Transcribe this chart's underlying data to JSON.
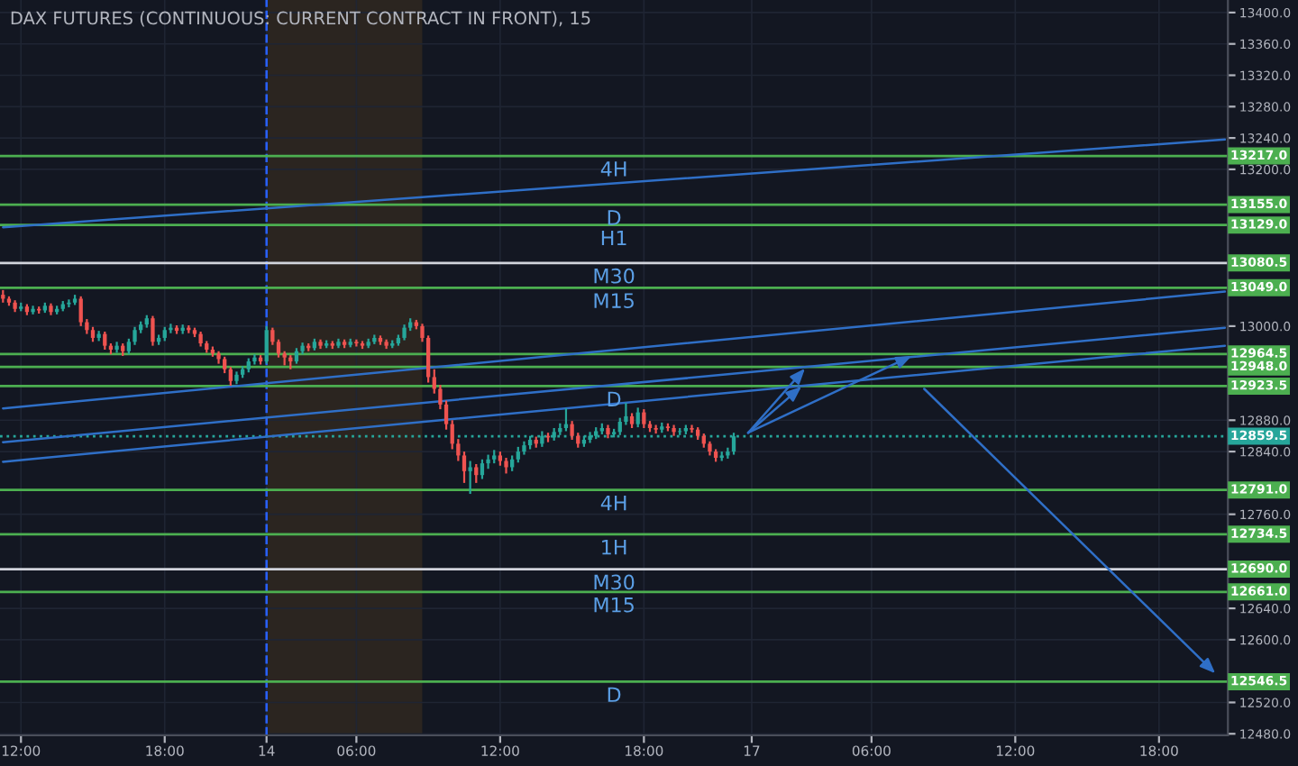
{
  "chart_data": {
    "type": "candlestick",
    "title": "DAX FUTURES (CONTINUOUS: CURRENT CONTRACT IN FRONT), 15",
    "categories": [
      null,
      null,
      null,
      "12:00",
      null,
      null,
      null,
      null,
      null,
      null,
      null,
      null,
      null,
      null,
      null,
      null,
      null,
      null,
      null,
      null,
      null,
      null,
      null,
      null,
      null,
      null,
      null,
      "18:00",
      null,
      null,
      null,
      null,
      null,
      null,
      null,
      null,
      null,
      null,
      null,
      null,
      null,
      null,
      null,
      null,
      "14",
      null,
      null,
      null,
      null,
      null,
      null,
      null,
      null,
      null,
      null,
      null,
      null,
      null,
      null,
      "06:00",
      null,
      null,
      null,
      null,
      null,
      null,
      null,
      null,
      null,
      null,
      null,
      null,
      null,
      null,
      null,
      null,
      null,
      null,
      null,
      null,
      null,
      null,
      null,
      "12:00",
      null,
      null,
      null,
      null,
      null,
      null,
      null,
      null,
      null,
      null,
      null,
      null,
      null,
      null,
      null,
      null,
      null,
      null,
      null,
      null,
      null,
      null,
      null,
      "18:00",
      null,
      null,
      null,
      null,
      null,
      null,
      null,
      null,
      null,
      null,
      null,
      null,
      null,
      null,
      null,
      null,
      null,
      "17",
      null,
      null,
      null,
      null,
      null,
      null,
      null,
      null,
      null,
      null,
      null,
      null,
      null,
      null,
      null,
      null,
      null,
      null,
      null,
      "06:00",
      null,
      null,
      null,
      null,
      null,
      null,
      null,
      null,
      null,
      null,
      null,
      null,
      null,
      null,
      null,
      null,
      null,
      null,
      null,
      null,
      null,
      null,
      null,
      "12:00",
      null,
      null,
      null,
      null,
      null,
      null,
      null,
      null,
      null,
      null,
      null,
      null,
      null,
      null,
      null,
      null,
      null,
      null,
      null,
      null,
      null,
      null,
      null,
      "18:00",
      null,
      null,
      null,
      null,
      null,
      null,
      null,
      null,
      null,
      null,
      null
    ],
    "ohlc": [
      [
        13040,
        13046,
        13030,
        13035
      ],
      [
        13035,
        13038,
        13026,
        13030
      ],
      [
        13030,
        13033,
        13018,
        13022
      ],
      [
        13022,
        13030,
        13019,
        13025
      ],
      [
        13025,
        13028,
        13014,
        13018
      ],
      [
        13018,
        13026,
        13015,
        13022
      ],
      [
        13022,
        13025,
        13016,
        13020
      ],
      [
        13020,
        13030,
        13017,
        13026
      ],
      [
        13026,
        13029,
        13014,
        13018
      ],
      [
        13018,
        13026,
        13015,
        13022
      ],
      [
        13022,
        13032,
        13019,
        13028
      ],
      [
        13028,
        13034,
        13024,
        13030
      ],
      [
        13030,
        13040,
        13027,
        13035
      ],
      [
        13035,
        13038,
        13000,
        13005
      ],
      [
        13005,
        13009,
        12990,
        12995
      ],
      [
        12995,
        12999,
        12980,
        12985
      ],
      [
        12985,
        12994,
        12981,
        12990
      ],
      [
        12990,
        12993,
        12970,
        12975
      ],
      [
        12975,
        12978,
        12964,
        12970
      ],
      [
        12970,
        12980,
        12966,
        12975
      ],
      [
        12975,
        12978,
        12962,
        12968
      ],
      [
        12968,
        12984,
        12964,
        12980
      ],
      [
        12980,
        12999,
        12976,
        12995
      ],
      [
        12995,
        13006,
        12991,
        13002
      ],
      [
        13002,
        13014,
        12998,
        13010
      ],
      [
        13010,
        13013,
        12975,
        12980
      ],
      [
        12980,
        12989,
        12976,
        12985
      ],
      [
        12985,
        12999,
        12981,
        12995
      ],
      [
        12995,
        13003,
        12991,
        12998
      ],
      [
        12998,
        13001,
        12990,
        12994
      ],
      [
        12994,
        13002,
        12990,
        12998
      ],
      [
        12998,
        13001,
        12991,
        12995
      ],
      [
        12995,
        12998,
        12986,
        12990
      ],
      [
        12990,
        12993,
        12974,
        12978
      ],
      [
        12978,
        12981,
        12966,
        12970
      ],
      [
        12970,
        12974,
        12961,
        12965
      ],
      [
        12965,
        12968,
        12952,
        12958
      ],
      [
        12958,
        12961,
        12940,
        12945
      ],
      [
        12945,
        12948,
        12924,
        12930
      ],
      [
        12930,
        12942,
        12926,
        12938
      ],
      [
        12938,
        12949,
        12934,
        12945
      ],
      [
        12945,
        12959,
        12941,
        12955
      ],
      [
        12955,
        12964,
        12951,
        12960
      ],
      [
        12960,
        12963,
        12951,
        12955
      ],
      [
        12955,
        13000,
        12952,
        12995
      ],
      [
        12995,
        12998,
        12976,
        12980
      ],
      [
        12980,
        12983,
        12960,
        12965
      ],
      [
        12965,
        12968,
        12950,
        12960
      ],
      [
        12960,
        12963,
        12945,
        12955
      ],
      [
        12955,
        12972,
        12952,
        12968
      ],
      [
        12968,
        12979,
        12964,
        12975
      ],
      [
        12975,
        12978,
        12968,
        12972
      ],
      [
        12972,
        12984,
        12969,
        12980
      ],
      [
        12980,
        12983,
        12971,
        12975
      ],
      [
        12975,
        12982,
        12972,
        12978
      ],
      [
        12978,
        12981,
        12971,
        12975
      ],
      [
        12975,
        12984,
        12972,
        12980
      ],
      [
        12980,
        12983,
        12972,
        12976
      ],
      [
        12976,
        12984,
        12973,
        12980
      ],
      [
        12980,
        12983,
        12974,
        12978
      ],
      [
        12978,
        12981,
        12971,
        12975
      ],
      [
        12975,
        12984,
        12972,
        12980
      ],
      [
        12980,
        12989,
        12977,
        12985
      ],
      [
        12985,
        12988,
        12976,
        12980
      ],
      [
        12980,
        12983,
        12971,
        12975
      ],
      [
        12975,
        12982,
        12972,
        12978
      ],
      [
        12978,
        12989,
        12975,
        12985
      ],
      [
        12985,
        13002,
        12982,
        12998
      ],
      [
        12998,
        13010,
        12994,
        13005
      ],
      [
        13005,
        13008,
        12996,
        13000
      ],
      [
        13000,
        13003,
        12980,
        12985
      ],
      [
        12985,
        12988,
        12928,
        12935
      ],
      [
        12935,
        12945,
        12914,
        12920
      ],
      [
        12920,
        12925,
        12894,
        12900
      ],
      [
        12900,
        12905,
        12868,
        12875
      ],
      [
        12875,
        12880,
        12843,
        12850
      ],
      [
        12850,
        12856,
        12828,
        12835
      ],
      [
        12835,
        12840,
        12800,
        12815
      ],
      [
        12815,
        12828,
        12786,
        12820
      ],
      [
        12820,
        12824,
        12800,
        12810
      ],
      [
        12810,
        12830,
        12805,
        12825
      ],
      [
        12825,
        12836,
        12818,
        12830
      ],
      [
        12830,
        12842,
        12825,
        12835
      ],
      [
        12835,
        12840,
        12822,
        12828
      ],
      [
        12828,
        12832,
        12812,
        12820
      ],
      [
        12820,
        12835,
        12815,
        12830
      ],
      [
        12830,
        12846,
        12826,
        12840
      ],
      [
        12840,
        12853,
        12836,
        12848
      ],
      [
        12848,
        12860,
        12843,
        12855
      ],
      [
        12855,
        12859,
        12845,
        12850
      ],
      [
        12850,
        12866,
        12846,
        12860
      ],
      [
        12860,
        12864,
        12852,
        12858
      ],
      [
        12858,
        12870,
        12854,
        12865
      ],
      [
        12865,
        12876,
        12861,
        12870
      ],
      [
        12870,
        12895,
        12866,
        12875
      ],
      [
        12875,
        12879,
        12855,
        12860
      ],
      [
        12860,
        12864,
        12845,
        12850
      ],
      [
        12850,
        12860,
        12846,
        12855
      ],
      [
        12855,
        12865,
        12851,
        12860
      ],
      [
        12860,
        12871,
        12856,
        12866
      ],
      [
        12866,
        12876,
        12862,
        12870
      ],
      [
        12870,
        12874,
        12857,
        12862
      ],
      [
        12862,
        12869,
        12858,
        12865
      ],
      [
        12865,
        12883,
        12861,
        12878
      ],
      [
        12878,
        12902,
        12874,
        12885
      ],
      [
        12885,
        12889,
        12870,
        12875
      ],
      [
        12875,
        12896,
        12871,
        12890
      ],
      [
        12890,
        12894,
        12870,
        12875
      ],
      [
        12875,
        12879,
        12865,
        12870
      ],
      [
        12870,
        12874,
        12863,
        12868
      ],
      [
        12868,
        12877,
        12864,
        12872
      ],
      [
        12872,
        12876,
        12866,
        12870
      ],
      [
        12870,
        12874,
        12860,
        12865
      ],
      [
        12865,
        12870,
        12861,
        12866
      ],
      [
        12866,
        12874,
        12862,
        12870
      ],
      [
        12870,
        12874,
        12864,
        12868
      ],
      [
        12868,
        12871,
        12855,
        12860
      ],
      [
        12860,
        12863,
        12845,
        12850
      ],
      [
        12850,
        12853,
        12835,
        12840
      ],
      [
        12840,
        12843,
        12827,
        12832
      ],
      [
        12832,
        12840,
        12828,
        12835
      ],
      [
        12835,
        12845,
        12831,
        12840
      ],
      [
        12840,
        12864,
        12836,
        12859.5
      ],
      null,
      null,
      null,
      null,
      null,
      null,
      null,
      null,
      null,
      null,
      null,
      null,
      null,
      null,
      null,
      null,
      null,
      null,
      null,
      null,
      null,
      null,
      null,
      null,
      null,
      null,
      null,
      null,
      null,
      null,
      null,
      null,
      null,
      null,
      null,
      null,
      null,
      null,
      null,
      null,
      null,
      null,
      null,
      null,
      null,
      null,
      null,
      null,
      null,
      null,
      null,
      null,
      null,
      null,
      null,
      null,
      null,
      null,
      null,
      null,
      null,
      null,
      null,
      null,
      null,
      null,
      null,
      null,
      null,
      null,
      null,
      null,
      null,
      null,
      null,
      null,
      null,
      null,
      null,
      null,
      null,
      null
    ],
    "ylim": [
      12478,
      13416
    ],
    "yticks": [
      {
        "value": 13400,
        "label": "13400.0"
      },
      {
        "value": 13360,
        "label": "13360.0"
      },
      {
        "value": 13320,
        "label": "13320.0"
      },
      {
        "value": 13280,
        "label": "13280.0"
      },
      {
        "value": 13240,
        "label": "13240.0"
      },
      {
        "value": 13200,
        "label": "13200.0"
      },
      {
        "value": 13000,
        "label": "13000.0"
      },
      {
        "value": 12880,
        "label": "12880.0"
      },
      {
        "value": 12840,
        "label": "12840.0"
      },
      {
        "value": 12760,
        "label": "12760.0"
      },
      {
        "value": 12640,
        "label": "12640.0"
      },
      {
        "value": 12600,
        "label": "12600.0"
      },
      {
        "value": 12520,
        "label": "12520.0"
      },
      {
        "value": 12480,
        "label": "12480.0"
      }
    ],
    "grid": true,
    "ref_lines": [
      {
        "axis": "x",
        "value": "14",
        "label": null,
        "color": "#2962ff",
        "line_style": "dashed"
      },
      {
        "axis": "y",
        "value": 13217.0,
        "label": "13217.0",
        "color": "#4caf50"
      },
      {
        "axis": "y",
        "value": 13155.0,
        "label": "13155.0",
        "color": "#4caf50"
      },
      {
        "axis": "y",
        "value": 13129.0,
        "label": "13129.0",
        "color": "#4caf50"
      },
      {
        "axis": "y",
        "value": 13080.5,
        "label": "13080.5",
        "color": "#d1d4dc"
      },
      {
        "axis": "y",
        "value": 13049.0,
        "label": "13049.0",
        "color": "#4caf50"
      },
      {
        "axis": "y",
        "value": 12964.5,
        "label": "12964.5",
        "color": "#4caf50"
      },
      {
        "axis": "y",
        "value": 12948.0,
        "label": "12948.0",
        "color": "#4caf50"
      },
      {
        "axis": "y",
        "value": 12923.5,
        "label": "12923.5",
        "color": "#4caf50"
      },
      {
        "axis": "y",
        "value": 12859.5,
        "label": "12859.5",
        "color": "#26a69a",
        "line_style": "dotted"
      },
      {
        "axis": "y",
        "value": 12791.0,
        "label": "12791.0",
        "color": "#4caf50"
      },
      {
        "axis": "y",
        "value": 12734.5,
        "label": "12734.5",
        "color": "#4caf50"
      },
      {
        "axis": "y",
        "value": 12690.0,
        "label": "12690.0",
        "color": "#d1d4dc"
      },
      {
        "axis": "y",
        "value": 12661.0,
        "label": "12661.0",
        "color": "#4caf50"
      },
      {
        "axis": "y",
        "value": 12546.5,
        "label": "12546.5",
        "color": "#4caf50"
      }
    ],
    "annotations": [
      {
        "text": "4H",
        "y": 13217.0
      },
      {
        "text": "D",
        "y": 13155.0
      },
      {
        "text": "H1",
        "y": 13129.0
      },
      {
        "text": "M30",
        "y": 13080.5
      },
      {
        "text": "M15",
        "y": 13049.0
      },
      {
        "text": "D",
        "y": 12923.5
      },
      {
        "text": "4H",
        "y": 12791.0
      },
      {
        "text": "1H",
        "y": 12734.5
      },
      {
        "text": "M30",
        "y": 12690.0
      },
      {
        "text": "M15",
        "y": 12661.0
      },
      {
        "text": "D",
        "y": 12546.5
      }
    ],
    "series": [
      {
        "type": "line",
        "color": "#2f6fc7",
        "values": [
          13126,
          null,
          null,
          null,
          null,
          null,
          null,
          null,
          null,
          null,
          null,
          null,
          null,
          null,
          null,
          null,
          null,
          null,
          null,
          null,
          null,
          null,
          null,
          null,
          null,
          null,
          null,
          null,
          null,
          null,
          null,
          null,
          null,
          null,
          null,
          null,
          null,
          null,
          null,
          null,
          null,
          null,
          null,
          null,
          null,
          null,
          null,
          null,
          null,
          null,
          null,
          null,
          null,
          null,
          null,
          null,
          null,
          null,
          null,
          null,
          null,
          null,
          null,
          null,
          null,
          null,
          null,
          null,
          null,
          null,
          null,
          null,
          null,
          null,
          null,
          null,
          null,
          null,
          null,
          null,
          null,
          null,
          null,
          null,
          null,
          null,
          null,
          null,
          null,
          null,
          null,
          null,
          null,
          null,
          null,
          null,
          null,
          null,
          null,
          null,
          null,
          null,
          null,
          null,
          null,
          null,
          null,
          null,
          null,
          null,
          null,
          null,
          null,
          null,
          null,
          null,
          null,
          null,
          null,
          null,
          null,
          null,
          null,
          null,
          null,
          null,
          null,
          null,
          null,
          null,
          null,
          null,
          null,
          null,
          null,
          null,
          null,
          null,
          null,
          null,
          null,
          null,
          null,
          null,
          null,
          null,
          null,
          null,
          null,
          null,
          null,
          null,
          null,
          null,
          null,
          null,
          null,
          null,
          null,
          null,
          null,
          null,
          null,
          null,
          null,
          null,
          null,
          null,
          null,
          null,
          null,
          null,
          null,
          null,
          null,
          null,
          null,
          null,
          null,
          null,
          null,
          null,
          null,
          null,
          null,
          null,
          null,
          null,
          null,
          null,
          null,
          null,
          null,
          null,
          null,
          null,
          null,
          null,
          null,
          null,
          null,
          null,
          null,
          null,
          13238
        ]
      },
      {
        "type": "line",
        "color": "#2f6fc7",
        "values": [
          12895,
          null,
          null,
          null,
          null,
          null,
          null,
          null,
          null,
          null,
          null,
          null,
          null,
          null,
          null,
          null,
          null,
          null,
          null,
          null,
          null,
          null,
          null,
          null,
          null,
          null,
          null,
          null,
          null,
          null,
          null,
          null,
          null,
          null,
          null,
          null,
          null,
          null,
          null,
          null,
          null,
          null,
          null,
          null,
          null,
          null,
          null,
          null,
          null,
          null,
          null,
          null,
          null,
          null,
          null,
          null,
          null,
          null,
          null,
          null,
          null,
          null,
          null,
          null,
          null,
          null,
          null,
          null,
          null,
          null,
          null,
          null,
          null,
          null,
          null,
          null,
          null,
          null,
          null,
          null,
          null,
          null,
          null,
          null,
          null,
          null,
          null,
          null,
          null,
          null,
          null,
          null,
          null,
          null,
          null,
          null,
          null,
          null,
          null,
          null,
          null,
          null,
          null,
          null,
          null,
          null,
          null,
          null,
          null,
          null,
          null,
          null,
          null,
          null,
          null,
          null,
          null,
          null,
          null,
          null,
          null,
          null,
          null,
          null,
          null,
          null,
          null,
          null,
          null,
          null,
          null,
          null,
          null,
          null,
          null,
          null,
          null,
          null,
          null,
          null,
          null,
          null,
          null,
          null,
          null,
          null,
          null,
          null,
          null,
          null,
          null,
          null,
          null,
          null,
          null,
          null,
          null,
          null,
          null,
          null,
          null,
          null,
          null,
          null,
          null,
          null,
          null,
          null,
          null,
          null,
          null,
          null,
          null,
          null,
          null,
          null,
          null,
          null,
          null,
          null,
          null,
          null,
          null,
          null,
          null,
          null,
          null,
          null,
          null,
          null,
          null,
          null,
          null,
          null,
          null,
          null,
          null,
          null,
          null,
          null,
          null,
          null,
          null,
          null,
          13044
        ]
      },
      {
        "type": "line",
        "color": "#2f6fc7",
        "values": [
          12852,
          null,
          null,
          null,
          null,
          null,
          null,
          null,
          null,
          null,
          null,
          null,
          null,
          null,
          null,
          null,
          null,
          null,
          null,
          null,
          null,
          null,
          null,
          null,
          null,
          null,
          null,
          null,
          null,
          null,
          null,
          null,
          null,
          null,
          null,
          null,
          null,
          null,
          null,
          null,
          null,
          null,
          null,
          null,
          null,
          null,
          null,
          null,
          null,
          null,
          null,
          null,
          null,
          null,
          null,
          null,
          null,
          null,
          null,
          null,
          null,
          null,
          null,
          null,
          null,
          null,
          null,
          null,
          null,
          null,
          null,
          null,
          null,
          null,
          null,
          null,
          null,
          null,
          null,
          null,
          null,
          null,
          null,
          null,
          null,
          null,
          null,
          null,
          null,
          null,
          null,
          null,
          null,
          null,
          null,
          null,
          null,
          null,
          null,
          null,
          null,
          null,
          null,
          null,
          null,
          null,
          null,
          null,
          null,
          null,
          null,
          null,
          null,
          null,
          null,
          null,
          null,
          null,
          null,
          null,
          null,
          null,
          null,
          null,
          null,
          null,
          null,
          null,
          null,
          null,
          null,
          null,
          null,
          null,
          null,
          null,
          null,
          null,
          null,
          null,
          null,
          null,
          null,
          null,
          null,
          null,
          null,
          null,
          null,
          null,
          null,
          null,
          null,
          null,
          null,
          null,
          null,
          null,
          null,
          null,
          null,
          null,
          null,
          null,
          null,
          null,
          null,
          null,
          null,
          null,
          null,
          null,
          null,
          null,
          null,
          null,
          null,
          null,
          null,
          null,
          null,
          null,
          null,
          null,
          null,
          null,
          null,
          null,
          null,
          null,
          null,
          null,
          null,
          null,
          null,
          null,
          null,
          null,
          null,
          null,
          null,
          null,
          null,
          null,
          12998
        ]
      },
      {
        "type": "line",
        "color": "#2f6fc7",
        "values": [
          12827,
          null,
          null,
          null,
          null,
          null,
          null,
          null,
          null,
          null,
          null,
          null,
          null,
          null,
          null,
          null,
          null,
          null,
          null,
          null,
          null,
          null,
          null,
          null,
          null,
          null,
          null,
          null,
          null,
          null,
          null,
          null,
          null,
          null,
          null,
          null,
          null,
          null,
          null,
          null,
          null,
          null,
          null,
          null,
          null,
          null,
          null,
          null,
          null,
          null,
          null,
          null,
          null,
          null,
          null,
          null,
          null,
          null,
          null,
          null,
          null,
          null,
          null,
          null,
          null,
          null,
          null,
          null,
          null,
          null,
          null,
          null,
          null,
          null,
          null,
          null,
          null,
          null,
          null,
          null,
          null,
          null,
          null,
          null,
          null,
          null,
          null,
          null,
          null,
          null,
          null,
          null,
          null,
          null,
          null,
          null,
          null,
          null,
          null,
          null,
          null,
          null,
          null,
          null,
          null,
          null,
          null,
          null,
          null,
          null,
          null,
          null,
          null,
          null,
          null,
          null,
          null,
          null,
          null,
          null,
          null,
          null,
          null,
          null,
          null,
          null,
          null,
          null,
          null,
          null,
          null,
          null,
          null,
          null,
          null,
          null,
          null,
          null,
          null,
          null,
          null,
          null,
          null,
          null,
          null,
          null,
          null,
          null,
          null,
          null,
          null,
          null,
          null,
          null,
          null,
          null,
          null,
          null,
          null,
          null,
          null,
          null,
          null,
          null,
          null,
          null,
          null,
          null,
          null,
          null,
          null,
          null,
          null,
          null,
          null,
          null,
          null,
          null,
          null,
          null,
          null,
          null,
          null,
          null,
          null,
          null,
          null,
          null,
          null,
          null,
          null,
          null,
          null,
          null,
          null,
          null,
          null,
          null,
          null,
          null,
          null,
          null,
          null,
          null,
          12975
        ]
      }
    ]
  }
}
